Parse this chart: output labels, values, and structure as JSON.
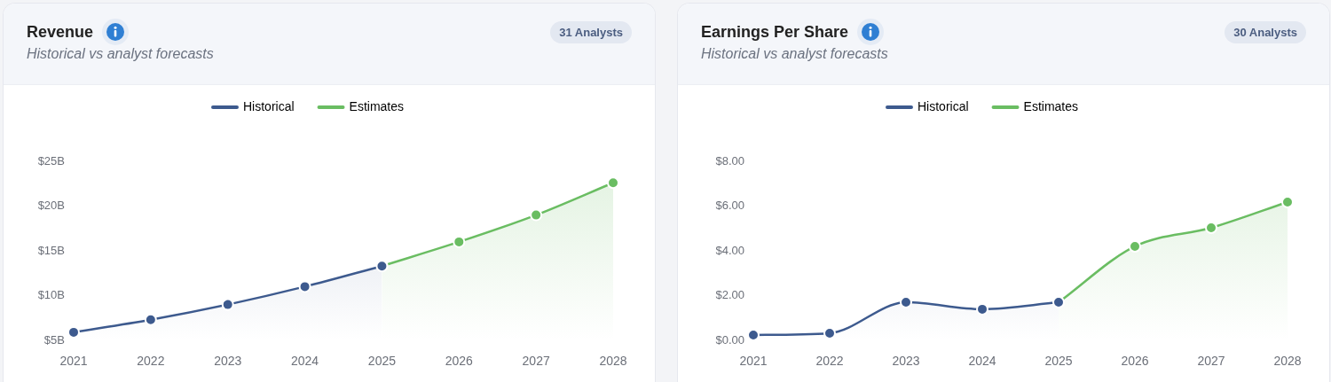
{
  "chart_data": [
    {
      "type": "area",
      "title": "Revenue",
      "subtitle": "Historical vs analyst forecasts",
      "annotations": [
        "31 Analysts"
      ],
      "categories": [
        "2021",
        "2022",
        "2023",
        "2024",
        "2025",
        "2026",
        "2027",
        "2028"
      ],
      "series": [
        {
          "name": "Historical",
          "color": "#3d5a8e",
          "values": [
            5.9,
            7.3,
            9.0,
            11.0,
            13.3,
            null,
            null,
            null
          ]
        },
        {
          "name": "Estimates",
          "color": "#6abd62",
          "values": [
            null,
            null,
            null,
            null,
            13.3,
            16.0,
            19.0,
            22.6
          ]
        }
      ],
      "ylim": [
        5,
        25
      ],
      "yticks": [
        {
          "value": 5,
          "label": "$5B"
        },
        {
          "value": 10,
          "label": "$10B"
        },
        {
          "value": 15,
          "label": "$15B"
        },
        {
          "value": 20,
          "label": "$20B"
        },
        {
          "value": 25,
          "label": "$25B"
        }
      ],
      "grid": false,
      "legend": "top",
      "marker": "circle"
    },
    {
      "type": "area",
      "title": "Earnings Per Share",
      "subtitle": "Historical vs analyst forecasts",
      "annotations": [
        "30 Analysts"
      ],
      "categories": [
        "2021",
        "2022",
        "2023",
        "2024",
        "2025",
        "2026",
        "2027",
        "2028"
      ],
      "series": [
        {
          "name": "Historical",
          "color": "#3d5a8e",
          "values": [
            0.24,
            0.32,
            1.7,
            1.39,
            1.7,
            null,
            null,
            null
          ]
        },
        {
          "name": "Estimates",
          "color": "#6abd62",
          "values": [
            null,
            null,
            null,
            null,
            1.7,
            4.2,
            5.03,
            6.18
          ]
        }
      ],
      "ylim": [
        0,
        8
      ],
      "yticks": [
        {
          "value": 0,
          "label": "$0.00"
        },
        {
          "value": 2,
          "label": "$2.00"
        },
        {
          "value": 4,
          "label": "$4.00"
        },
        {
          "value": 6,
          "label": "$6.00"
        },
        {
          "value": 8,
          "label": "$8.00"
        }
      ],
      "grid": false,
      "legend": "top",
      "marker": "circle"
    }
  ]
}
